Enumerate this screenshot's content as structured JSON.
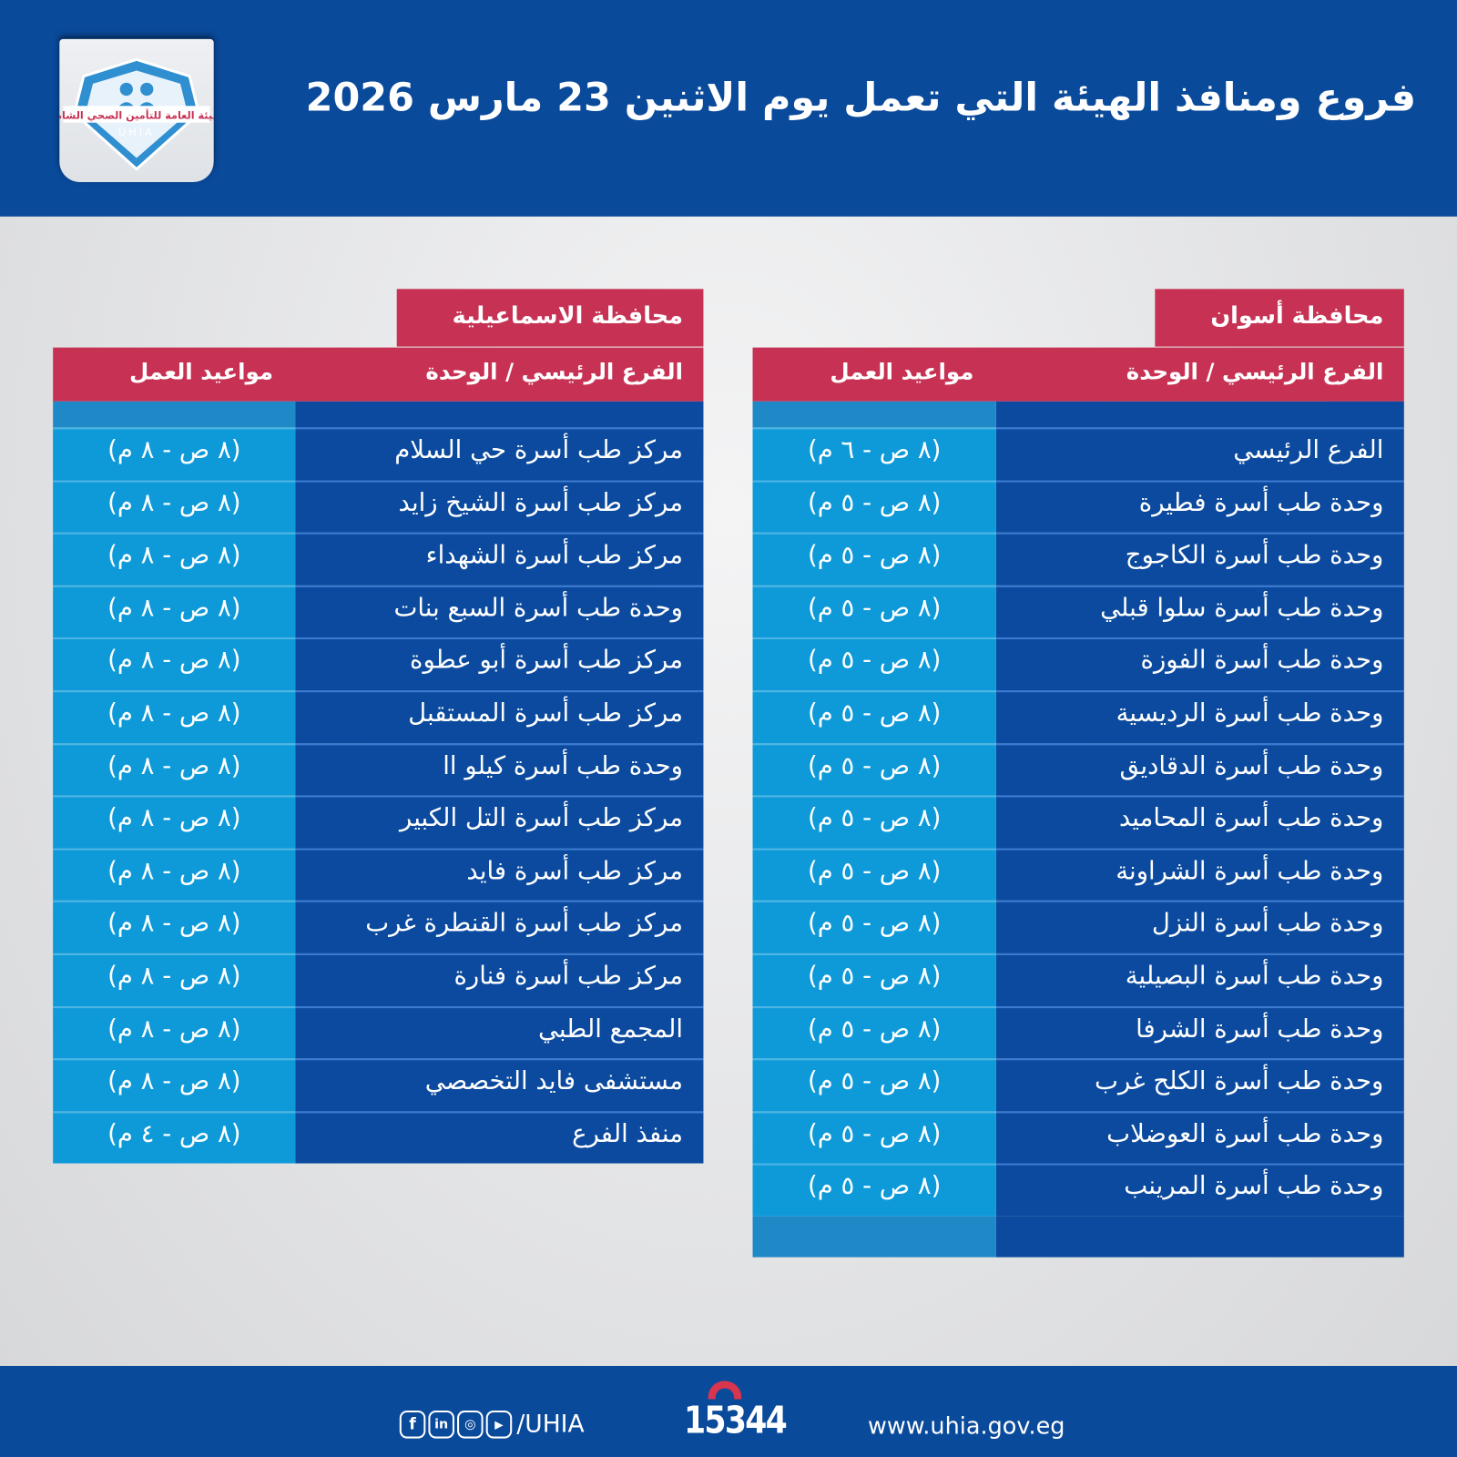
{
  "header": {
    "title": "فروع ومنافذ الهيئة التي تعمل يوم الاثنين 23 مارس 2026",
    "logo_text": "الهيئة العامة للتأمين الصحي الشامل",
    "logo_abbr": "UHIA"
  },
  "colors": {
    "primary_blue": "#0a4a9b",
    "accent_red": "#c73254",
    "time_cell": "#0e9ad8"
  },
  "aswan": {
    "province": "محافظة أسوان",
    "col_unit": "الفرع الرئيسي / الوحدة",
    "col_hours": "مواعيد العمل",
    "rows": [
      {
        "name": "الفرع الرئيسي",
        "hours": "(٨ ص - ٦ م)"
      },
      {
        "name": "وحدة طب أسرة فطيرة",
        "hours": "(٨ ص - ٥ م)"
      },
      {
        "name": "وحدة طب أسرة الكاجوج",
        "hours": "(٨ ص - ٥ م)"
      },
      {
        "name": "وحدة طب أسرة سلوا قبلي",
        "hours": "(٨ ص - ٥ م)"
      },
      {
        "name": "وحدة طب أسرة الفوزة",
        "hours": "(٨ ص - ٥ م)"
      },
      {
        "name": "وحدة طب أسرة الرديسية",
        "hours": "(٨ ص - ٥ م)"
      },
      {
        "name": "وحدة طب أسرة الدقاديق",
        "hours": "(٨ ص - ٥ م)"
      },
      {
        "name": "وحدة طب أسرة المحاميد",
        "hours": "(٨ ص - ٥ م)"
      },
      {
        "name": "وحدة طب أسرة الشراونة",
        "hours": "(٨ ص - ٥ م)"
      },
      {
        "name": "وحدة طب أسرة النزل",
        "hours": "(٨ ص - ٥ م)"
      },
      {
        "name": "وحدة طب أسرة البصيلية",
        "hours": "(٨ ص - ٥ م)"
      },
      {
        "name": "وحدة طب أسرة الشرفا",
        "hours": "(٨ ص - ٥ م)"
      },
      {
        "name": "وحدة طب أسرة الكلح غرب",
        "hours": "(٨ ص - ٥ م)"
      },
      {
        "name": "وحدة طب أسرة العوضلاب",
        "hours": "(٨ ص - ٥ م)"
      },
      {
        "name": "وحدة طب أسرة المرينب",
        "hours": "(٨ ص - ٥ م)"
      }
    ]
  },
  "ismailia": {
    "province": "محافظة الاسماعيلية",
    "col_unit": "الفرع الرئيسي / الوحدة",
    "col_hours": "مواعيد العمل",
    "rows": [
      {
        "name": "مركز طب أسرة حي السلام",
        "hours": "(٨ ص - ٨ م)"
      },
      {
        "name": "مركز طب أسرة الشيخ زايد",
        "hours": "(٨ ص - ٨ م)"
      },
      {
        "name": "مركز طب أسرة الشهداء",
        "hours": "(٨ ص - ٨ م)"
      },
      {
        "name": "وحدة طب أسرة السبع بنات",
        "hours": "(٨ ص - ٨ م)"
      },
      {
        "name": "مركز طب أسرة أبو عطوة",
        "hours": "(٨ ص - ٨ م)"
      },
      {
        "name": "مركز طب أسرة المستقبل",
        "hours": "(٨ ص - ٨ م)"
      },
      {
        "name": "وحدة طب أسرة كيلو اا",
        "hours": "(٨ ص - ٨ م)"
      },
      {
        "name": "مركز طب أسرة التل الكبير",
        "hours": "(٨ ص - ٨ م)"
      },
      {
        "name": "مركز طب أسرة فايد",
        "hours": "(٨ ص - ٨ م)"
      },
      {
        "name": "مركز طب أسرة القنطرة غرب",
        "hours": "(٨ ص - ٨ م)"
      },
      {
        "name": "مركز طب أسرة فنارة",
        "hours": "(٨ ص - ٨ م)"
      },
      {
        "name": "المجمع الطبي",
        "hours": "(٨ ص - ٨ م)"
      },
      {
        "name": "مستشفى فايد التخصصي",
        "hours": "(٨ ص - ٨ م)"
      },
      {
        "name": "منفذ الفرع",
        "hours": "(٨ ص - ٤ م)"
      }
    ]
  },
  "footer": {
    "social_handle": "/UHIA",
    "hotline": "15344",
    "website": "www.uhia.gov.eg",
    "social_icons": [
      "facebook-icon",
      "linkedin-icon",
      "instagram-icon",
      "youtube-icon"
    ],
    "hotline_icon": "phone-icon"
  }
}
